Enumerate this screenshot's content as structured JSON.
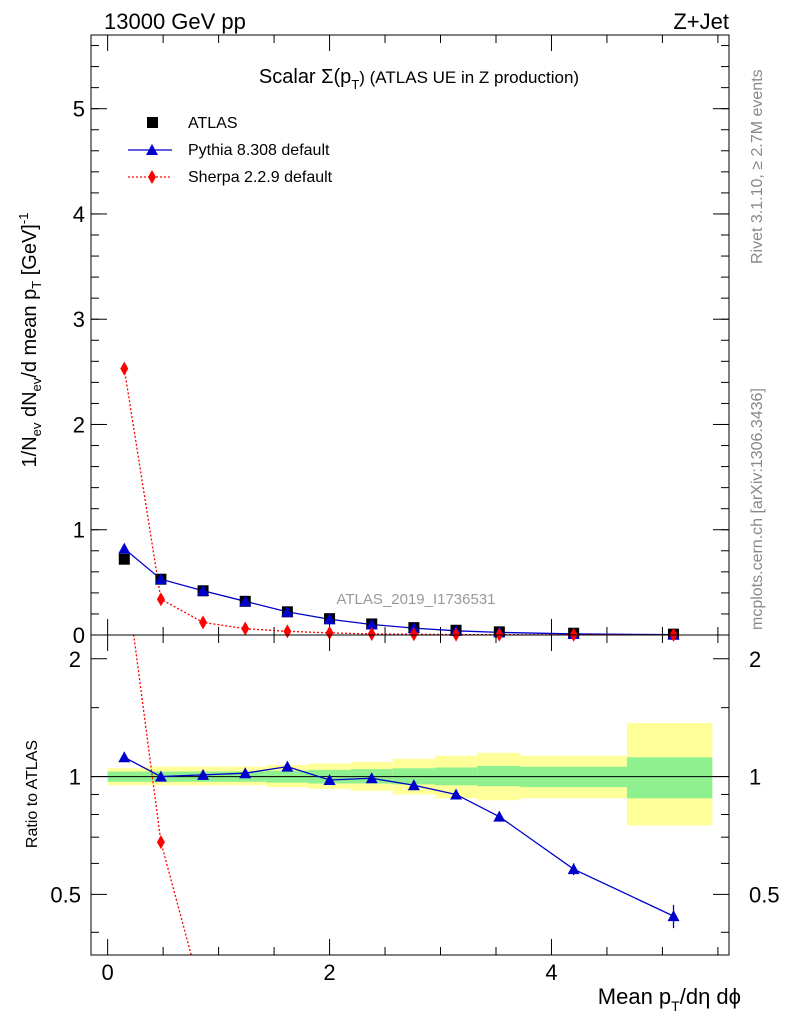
{
  "header": {
    "left": "13000 GeV pp",
    "right": "Z+Jet"
  },
  "side_labels": {
    "rivet": "Rivet 3.1.10, ≥ 2.7M events",
    "mcplots": "mcplots.cern.ch [arXiv:1306.3436]"
  },
  "title": {
    "prefix": "Scalar Σ(p",
    "sub": "T",
    "suffix": ") (ATLAS UE in Z production)"
  },
  "watermark": "ATLAS_2019_I1736531",
  "ylabel_main": {
    "a": "1/N",
    "a_sub": "ev",
    "b": " dN",
    "b_sub": "ev",
    "c": "/d mean p",
    "c_sub": "T",
    "d": " [GeV]",
    "d_sup": "-1"
  },
  "ylabel_ratio": "Ratio to ATLAS",
  "xlabel": {
    "a": "Mean p",
    "a_sub": "T",
    "b": "/dη dϕ"
  },
  "legend": [
    {
      "label": "ATLAS",
      "marker": "square",
      "color": "#000000"
    },
    {
      "label": "Pythia 8.308 default",
      "marker": "triangle",
      "color": "#0000cc"
    },
    {
      "label": "Sherpa 2.2.9 default",
      "marker": "diamond",
      "color": "#ff0000"
    }
  ],
  "colors": {
    "atlas": "#000000",
    "pythia": "#0000cc",
    "sherpa": "#ff0000",
    "band_inner": "#8ff08f",
    "band_outer": "#ffff99"
  },
  "chart_data": {
    "type": "scatter",
    "x_range": [
      -0.15,
      5.6
    ],
    "main": {
      "ylim": [
        0,
        5.7
      ],
      "y_ticks": [
        0,
        1,
        2,
        3,
        4,
        5
      ],
      "x_ticks": [
        0,
        2,
        4
      ],
      "series": [
        {
          "name": "ATLAS",
          "x": [
            0.15,
            0.48,
            0.86,
            1.24,
            1.62,
            2.0,
            2.38,
            2.76,
            3.14,
            3.53,
            4.2,
            5.1
          ],
          "y": [
            0.72,
            0.53,
            0.42,
            0.32,
            0.22,
            0.155,
            0.105,
            0.07,
            0.045,
            0.03,
            0.017,
            0.008
          ]
        },
        {
          "name": "Pythia 8.308 default",
          "x": [
            0.15,
            0.48,
            0.86,
            1.24,
            1.62,
            2.0,
            2.38,
            2.76,
            3.14,
            3.53,
            4.2,
            5.1
          ],
          "y": [
            0.82,
            0.53,
            0.42,
            0.32,
            0.22,
            0.15,
            0.1,
            0.065,
            0.04,
            0.025,
            0.01,
            0.003
          ]
        },
        {
          "name": "Sherpa 2.2.9 default",
          "x": [
            0.15,
            0.48,
            0.86,
            1.24,
            1.62,
            2.0,
            2.38,
            2.76,
            3.14,
            3.53,
            4.2,
            5.1
          ],
          "y": [
            2.53,
            0.34,
            0.12,
            0.06,
            0.035,
            0.02,
            0.01,
            0.007,
            0.004,
            0.003,
            0.002,
            0.001
          ]
        }
      ]
    },
    "ratio": {
      "ylim": [
        0.35,
        2.3
      ],
      "y_ticks": [
        0.5,
        1,
        2
      ],
      "x_ticks": [
        0,
        2,
        4
      ],
      "bins": [
        {
          "lo": 0.0,
          "hi": 0.3,
          "in_lo": 0.97,
          "in_hi": 1.03,
          "out_lo": 0.95,
          "out_hi": 1.05
        },
        {
          "lo": 0.3,
          "hi": 0.67,
          "in_lo": 0.97,
          "in_hi": 1.03,
          "out_lo": 0.95,
          "out_hi": 1.06
        },
        {
          "lo": 0.67,
          "hi": 1.05,
          "in_lo": 0.97,
          "in_hi": 1.03,
          "out_lo": 0.95,
          "out_hi": 1.06
        },
        {
          "lo": 1.05,
          "hi": 1.43,
          "in_lo": 0.97,
          "in_hi": 1.03,
          "out_lo": 0.95,
          "out_hi": 1.06
        },
        {
          "lo": 1.43,
          "hi": 1.81,
          "in_lo": 0.965,
          "in_hi": 1.035,
          "out_lo": 0.94,
          "out_hi": 1.07
        },
        {
          "lo": 1.81,
          "hi": 2.19,
          "in_lo": 0.96,
          "in_hi": 1.04,
          "out_lo": 0.93,
          "out_hi": 1.08
        },
        {
          "lo": 2.19,
          "hi": 2.57,
          "in_lo": 0.96,
          "in_hi": 1.045,
          "out_lo": 0.92,
          "out_hi": 1.09
        },
        {
          "lo": 2.57,
          "hi": 2.95,
          "in_lo": 0.955,
          "in_hi": 1.05,
          "out_lo": 0.9,
          "out_hi": 1.11
        },
        {
          "lo": 2.95,
          "hi": 3.33,
          "in_lo": 0.95,
          "in_hi": 1.055,
          "out_lo": 0.88,
          "out_hi": 1.13
        },
        {
          "lo": 3.33,
          "hi": 3.72,
          "in_lo": 0.945,
          "in_hi": 1.065,
          "out_lo": 0.87,
          "out_hi": 1.15
        },
        {
          "lo": 3.72,
          "hi": 4.68,
          "in_lo": 0.94,
          "in_hi": 1.06,
          "out_lo": 0.88,
          "out_hi": 1.13
        },
        {
          "lo": 4.68,
          "hi": 5.45,
          "in_lo": 0.88,
          "in_hi": 1.12,
          "out_lo": 0.75,
          "out_hi": 1.37
        }
      ],
      "series": [
        {
          "name": "Pythia 8.308 default",
          "x": [
            0.15,
            0.48,
            0.86,
            1.24,
            1.62,
            2.0,
            2.38,
            2.76,
            3.14,
            3.53,
            4.2,
            5.1
          ],
          "y": [
            1.12,
            1.0,
            1.01,
            1.02,
            1.06,
            0.98,
            0.99,
            0.95,
            0.9,
            0.79,
            0.58,
            0.44
          ],
          "err": [
            0.01,
            0.01,
            0.01,
            0.01,
            0.01,
            0.01,
            0.01,
            0.01,
            0.015,
            0.02,
            0.02,
            0.03
          ]
        },
        {
          "name": "Sherpa 2.2.9 default",
          "x": [
            0.15,
            0.48,
            0.86
          ],
          "y": [
            3.51,
            0.68,
            0.27
          ]
        }
      ]
    }
  }
}
